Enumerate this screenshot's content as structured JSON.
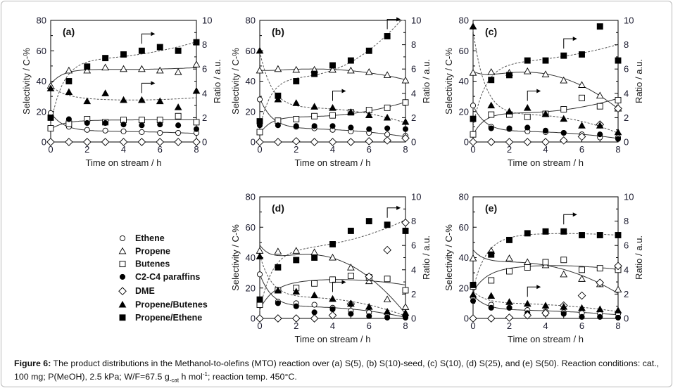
{
  "caption": {
    "label": "Figure 6:",
    "text_1": " The product distributions in the Methanol-to-olefins (MTO) reaction over (a) S(5), (b) S(10)-seed, (c) S(10), (d) S(25), and (e) S(50). Reaction conditions: cat., 100 mg; P(MeOH), 2.5 kPa; W/F=67.5 g",
    "subscript": "-cat",
    "text_2": " h mol",
    "superscript": "-1",
    "text_3": "; reaction temp. 450°C."
  },
  "legend": [
    {
      "name": "Ethene",
      "marker": "open-circle"
    },
    {
      "name": "Propene",
      "marker": "open-triangle"
    },
    {
      "name": "Butenes",
      "marker": "open-square"
    },
    {
      "name": "C2-C4 paraffins",
      "marker": "filled-circle"
    },
    {
      "name": "DME",
      "marker": "open-diamond"
    },
    {
      "name": "Propene/Butenes",
      "marker": "filled-triangle"
    },
    {
      "name": "Propene/Ethene",
      "marker": "filled-square"
    }
  ],
  "chart_data": [
    {
      "type": "scatter",
      "panel": "(a)",
      "catalyst": "S(5)",
      "xlabel": "Time on stream / h",
      "ylabel": "Selectivity / C-%",
      "y2label": "Ratio / a.u.",
      "xlim": [
        0,
        8
      ],
      "ylim": [
        0,
        80
      ],
      "y2lim": [
        0,
        10
      ],
      "xticks": [
        "0",
        "2",
        "4",
        "6",
        "8"
      ],
      "yticks": [
        "0",
        "20",
        "40",
        "60",
        "80"
      ],
      "y2ticks": [
        "0",
        "2",
        "4",
        "6",
        "8",
        "10"
      ],
      "x": [
        0,
        1,
        2,
        3,
        4,
        5,
        6,
        7,
        8
      ],
      "series": [
        {
          "name": "Ethene",
          "axis": "left",
          "values": [
            19,
            10,
            8,
            7.5,
            7,
            6.5,
            6,
            6,
            6
          ]
        },
        {
          "name": "Propene",
          "axis": "left",
          "values": [
            37,
            47,
            47,
            49,
            48,
            48,
            47,
            46,
            51
          ]
        },
        {
          "name": "Butenes",
          "axis": "left",
          "values": [
            9,
            12,
            15,
            13,
            14.5,
            14.5,
            14.5,
            17,
            13
          ]
        },
        {
          "name": "C2-C4 paraffins",
          "axis": "left",
          "values": [
            16,
            15,
            12.5,
            12.5,
            11.5,
            11,
            11.5,
            11,
            8.5
          ]
        },
        {
          "name": "DME",
          "axis": "left",
          "values": [
            0,
            0,
            0,
            0,
            0,
            0,
            0,
            0,
            0
          ]
        },
        {
          "name": "Propene/Butenes",
          "axis": "right",
          "values": [
            4.4,
            4.1,
            3.35,
            4.0,
            3.45,
            3.45,
            3.35,
            2.85,
            4.2
          ]
        },
        {
          "name": "Propene/Ethene",
          "axis": "right",
          "values": [
            2.0,
            5.0,
            6.2,
            6.9,
            7.2,
            7.5,
            7.8,
            7.5,
            8.2
          ]
        }
      ],
      "arrows_to_right_axis": [
        "Propene/Ethene",
        "Propene/Butenes"
      ]
    },
    {
      "type": "scatter",
      "panel": "(b)",
      "catalyst": "S(10)-seed",
      "xlabel": "Time on stream / h",
      "ylabel": "Selectivity / C-%",
      "y2label": "Ratio / a.u.",
      "xlim": [
        0,
        8
      ],
      "ylim": [
        0,
        80
      ],
      "y2lim": [
        0,
        10
      ],
      "xticks": [
        "0",
        "2",
        "4",
        "6",
        "8"
      ],
      "yticks": [
        "0",
        "20",
        "40",
        "60",
        "80"
      ],
      "y2ticks": [
        "0",
        "2",
        "4",
        "6",
        "8",
        "10"
      ],
      "x": [
        0,
        1,
        2,
        3,
        4,
        5,
        6,
        7,
        8
      ],
      "series": [
        {
          "name": "Ethene",
          "axis": "left",
          "values": [
            28,
            14,
            10,
            9,
            8,
            7,
            6,
            5,
            4
          ]
        },
        {
          "name": "Propene",
          "axis": "left",
          "values": [
            47,
            48,
            47.5,
            47.5,
            47.5,
            47,
            46,
            44,
            40.5
          ]
        },
        {
          "name": "Butenes",
          "axis": "left",
          "values": [
            6.5,
            14,
            15,
            17,
            17.5,
            19.5,
            21,
            22.5,
            26
          ]
        },
        {
          "name": "C2-C4 paraffins",
          "axis": "left",
          "values": [
            11,
            11,
            10.5,
            10.5,
            10.5,
            9.5,
            8.5,
            9,
            8.5
          ]
        },
        {
          "name": "DME",
          "axis": "left",
          "values": [
            0,
            0,
            0.5,
            0,
            0,
            0,
            0.5,
            1,
            2.5
          ]
        },
        {
          "name": "Propene/Butenes",
          "axis": "right",
          "values": [
            7.5,
            3.5,
            3.2,
            2.9,
            2.8,
            2.45,
            2.2,
            2.0,
            1.65
          ]
        },
        {
          "name": "Propene/Ethene",
          "axis": "right",
          "values": [
            1.7,
            3.8,
            5.0,
            5.6,
            6.3,
            6.7,
            7.5,
            8.7,
            null
          ]
        }
      ],
      "arrows_to_right_axis": [
        "Propene/Ethene",
        "Propene/Butenes"
      ]
    },
    {
      "type": "scatter",
      "panel": "(c)",
      "catalyst": "S(10)",
      "xlabel": "Time on stream / h",
      "ylabel": "Selectivity / C-%",
      "y2label": "Ratio / a.u.",
      "xlim": [
        0,
        8
      ],
      "ylim": [
        0,
        80
      ],
      "y2lim": [
        0,
        10
      ],
      "xticks": [
        "0",
        "2",
        "4",
        "6",
        "8"
      ],
      "yticks": [
        "0",
        "20",
        "40",
        "60",
        "80"
      ],
      "y2ticks": [
        "0",
        "2",
        "4",
        "6",
        "8",
        "10"
      ],
      "x": [
        0,
        1,
        2,
        3,
        4,
        5,
        6,
        7,
        8
      ],
      "series": [
        {
          "name": "Ethene",
          "axis": "left",
          "values": [
            24,
            10,
            8.5,
            7,
            6.5,
            6,
            5,
            3,
            3
          ]
        },
        {
          "name": "Propene",
          "axis": "left",
          "values": [
            45.5,
            46,
            45.5,
            46.5,
            44.5,
            40.5,
            37.5,
            30.5,
            22
          ]
        },
        {
          "name": "Butenes",
          "axis": "left",
          "values": [
            5,
            18,
            18,
            16.5,
            18.5,
            21.5,
            29,
            23.5,
            27.5
          ]
        },
        {
          "name": "C2-C4 paraffins",
          "axis": "left",
          "values": [
            null,
            9,
            9,
            9.5,
            7.5,
            6,
            3.5,
            5,
            2
          ]
        },
        {
          "name": "DME",
          "axis": "left",
          "values": [
            0,
            0,
            0,
            0,
            0,
            1,
            3.5,
            11.5,
            22
          ]
        },
        {
          "name": "Propene/Butenes",
          "axis": "right",
          "values": [
            9.5,
            3.0,
            2.5,
            2.8,
            2.3,
            1.9,
            1.35,
            1.35,
            0.8
          ]
        },
        {
          "name": "Propene/Ethene",
          "axis": "right",
          "values": [
            1.9,
            5.1,
            5.5,
            6.7,
            6.7,
            7.1,
            7.2,
            9.5,
            6.7
          ]
        }
      ],
      "arrows_to_right_axis": [
        "Propene/Ethene",
        "Propene/Butenes"
      ]
    },
    {
      "type": "scatter",
      "panel": "(d)",
      "catalyst": "S(25)",
      "xlabel": "Time on stream / h",
      "ylabel": "Selectivity / C-%",
      "y2label": "Ratio / a.u.",
      "xlim": [
        0,
        8
      ],
      "ylim": [
        0,
        80
      ],
      "y2lim": [
        0,
        10
      ],
      "xticks": [
        "0",
        "2",
        "4",
        "6",
        "8"
      ],
      "yticks": [
        "0",
        "20",
        "40",
        "60",
        "80"
      ],
      "y2ticks": [
        "0",
        "2",
        "4",
        "6",
        "8",
        "10"
      ],
      "x": [
        0,
        1,
        2,
        3,
        4,
        5,
        6,
        7,
        8
      ],
      "series": [
        {
          "name": "Ethene",
          "axis": "left",
          "values": [
            29,
            11,
            10,
            9,
            7,
            5,
            4,
            3,
            1.5
          ]
        },
        {
          "name": "Propene",
          "axis": "left",
          "values": [
            44.5,
            44,
            44.5,
            43.5,
            40,
            33.5,
            24.5,
            12.5,
            7.5
          ]
        },
        {
          "name": "Butenes",
          "axis": "left",
          "values": [
            9,
            18.5,
            20,
            23,
            25.5,
            28,
            27,
            26,
            18.5
          ]
        },
        {
          "name": "C2-C4 paraffins",
          "axis": "left",
          "values": [
            null,
            10,
            8,
            4,
            6,
            3,
            1.5,
            0.5,
            0.5
          ]
        },
        {
          "name": "DME",
          "axis": "left",
          "values": [
            0,
            0,
            0,
            0,
            2,
            9.5,
            27.5,
            45,
            63
          ]
        },
        {
          "name": "Propene/Butenes",
          "axis": "right",
          "values": [
            5.1,
            2.3,
            2.2,
            1.9,
            1.6,
            1.2,
            0.95,
            0.55,
            0.45
          ]
        },
        {
          "name": "Propene/Ethene",
          "axis": "right",
          "values": [
            1.55,
            4.2,
            4.8,
            5.0,
            6.1,
            7.2,
            8.0,
            7.7,
            7.2
          ]
        }
      ],
      "arrows_to_right_axis": [
        "Propene/Ethene",
        "Propene/Butenes"
      ]
    },
    {
      "type": "scatter",
      "panel": "(e)",
      "catalyst": "S(50)",
      "xlabel": "Time on stream / h",
      "ylabel": "Selectivity / C-%",
      "y2label": "Ratio / a.u.",
      "xlim": [
        0,
        8
      ],
      "ylim": [
        0,
        80
      ],
      "y2lim": [
        0,
        10
      ],
      "xticks": [
        "0",
        "2",
        "4",
        "6",
        "8"
      ],
      "yticks": [
        "0",
        "20",
        "40",
        "60",
        "80"
      ],
      "y2ticks": [
        "0",
        "2",
        "4",
        "6",
        "8",
        "10"
      ],
      "x": [
        0,
        1,
        2,
        3,
        4,
        5,
        6,
        7,
        8
      ],
      "series": [
        {
          "name": "Ethene",
          "axis": "left",
          "values": [
            14,
            9,
            7,
            5.5,
            4.5,
            4,
            3.5,
            3,
            3
          ]
        },
        {
          "name": "Propene",
          "axis": "left",
          "values": [
            39.5,
            44.5,
            39.5,
            37,
            35,
            29,
            26,
            22.5,
            19
          ]
        },
        {
          "name": "Butenes",
          "axis": "left",
          "values": [
            21,
            25,
            31,
            33.5,
            37,
            38.5,
            32,
            33,
            32
          ]
        },
        {
          "name": "C2-C4 paraffins",
          "axis": "left",
          "values": [
            11.5,
            7,
            7,
            3.5,
            3,
            3,
            1,
            1,
            0.5
          ]
        },
        {
          "name": "DME",
          "axis": "left",
          "values": [
            0,
            0,
            0.5,
            2,
            3.5,
            8.5,
            15,
            23.5,
            34.5
          ]
        },
        {
          "name": "Propene/Butenes",
          "axis": "right",
          "values": [
            1.95,
            1.85,
            1.35,
            1.2,
            1.05,
            0.95,
            0.85,
            0.75,
            0.65
          ]
        },
        {
          "name": "Propene/Ethene",
          "axis": "right",
          "values": [
            2.75,
            5.25,
            6.45,
            7.0,
            7.15,
            7.15,
            6.85,
            6.85,
            6.85
          ]
        }
      ],
      "arrows_to_right_axis": [
        "Propene/Ethene",
        "Propene/Butenes"
      ]
    }
  ]
}
